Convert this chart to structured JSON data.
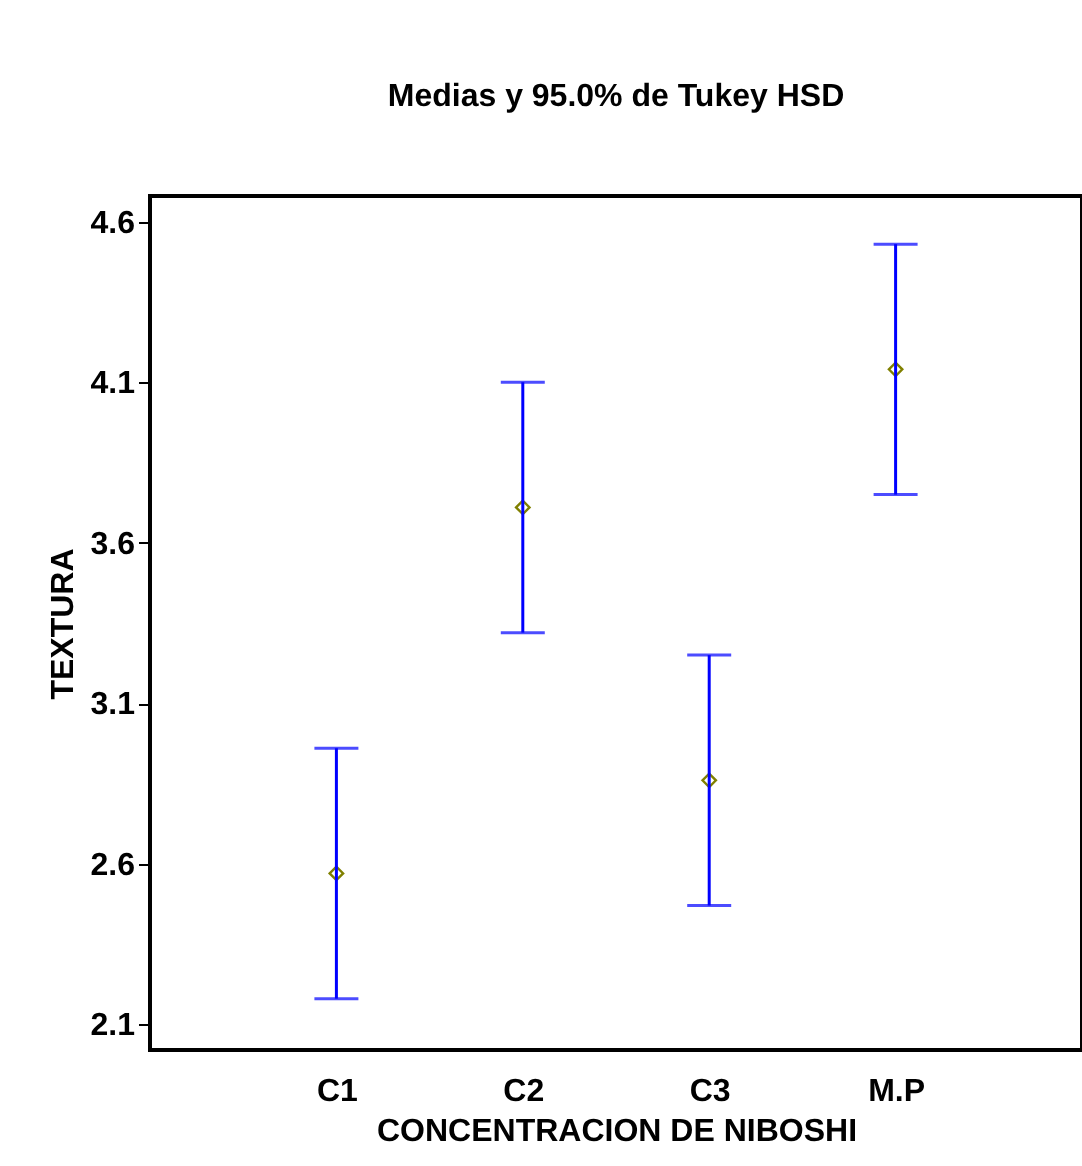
{
  "chart_data": {
    "type": "scatter",
    "title": "Medias y 95.0% de Tukey HSD",
    "xlabel": "CONCENTRACION DE NIBOSHI",
    "ylabel": "TEXTURA",
    "categories": [
      "C1",
      "C2",
      "C3",
      "M.P"
    ],
    "series": [
      {
        "color": "#808000",
        "values": [
          2.57,
          3.71,
          2.86,
          4.14
        ],
        "errors": [
          0.39,
          0.39,
          0.39,
          0.39
        ]
      }
    ],
    "marker": "diamond",
    "ylim": [
      2.02,
      4.68
    ],
    "yticks": [
      2.1,
      2.6,
      3.1,
      3.6,
      4.1,
      4.6
    ],
    "grid": false
  }
}
